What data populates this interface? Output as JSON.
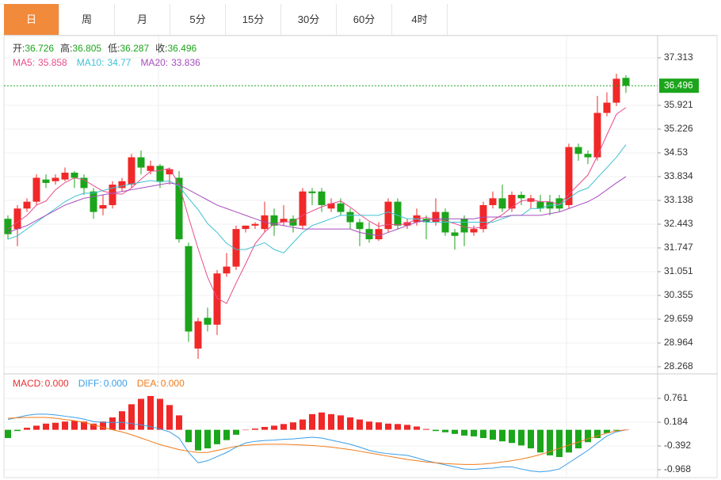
{
  "tabs": [
    "日",
    "周",
    "月",
    "5分",
    "15分",
    "30分",
    "60分",
    "4时"
  ],
  "active_tab": 0,
  "chart_data": [
    {
      "type": "candlestick",
      "up_color": "#f02828",
      "down_color": "#1ba51b",
      "info_labels": {
        "open": "开:",
        "high": "高:",
        "low": "低:",
        "close": "收:"
      },
      "ylim": [
        28.106,
        37.962
      ],
      "yticks": [
        37.313,
        35.921,
        35.226,
        34.53,
        33.834,
        33.138,
        32.443,
        31.747,
        31.051,
        30.355,
        29.659,
        28.964,
        28.268
      ],
      "open": [
        32.6,
        32.3,
        32.9,
        33.1,
        33.75,
        33.7,
        33.75,
        33.95,
        33.8,
        33.4,
        32.9,
        33.0,
        33.5,
        33.6,
        34.4,
        34.0,
        34.15,
        33.9,
        33.8,
        31.8,
        28.8,
        29.7,
        29.5,
        31.0,
        31.2,
        32.3,
        32.4,
        32.3,
        32.7,
        32.5,
        32.6,
        32.4,
        33.4,
        33.4,
        32.9,
        33.05,
        32.8,
        32.5,
        32.3,
        32.0,
        32.3,
        33.1,
        32.4,
        32.5,
        32.6,
        32.5,
        32.8,
        32.2,
        32.6,
        32.2,
        32.3,
        33.0,
        33.2,
        32.9,
        33.3,
        33.1,
        33.1,
        33.1,
        33.2,
        33.0,
        34.7,
        34.5,
        34.4,
        35.7,
        36.0,
        36.726
      ],
      "high": [
        32.7,
        33.0,
        33.2,
        33.9,
        33.9,
        33.9,
        34.1,
        34.0,
        33.9,
        33.5,
        33.3,
        33.7,
        33.8,
        34.5,
        34.6,
        34.3,
        34.2,
        34.1,
        34.0,
        31.9,
        29.7,
        30.0,
        31.1,
        31.6,
        32.4,
        32.4,
        32.5,
        33.1,
        32.9,
        33.0,
        32.7,
        33.5,
        33.5,
        33.5,
        33.2,
        33.2,
        32.9,
        32.6,
        32.5,
        32.5,
        33.2,
        33.2,
        32.6,
        32.9,
        32.7,
        33.2,
        32.9,
        32.3,
        32.7,
        32.4,
        33.1,
        33.4,
        33.6,
        33.4,
        33.4,
        33.3,
        33.3,
        33.3,
        33.3,
        34.8,
        34.8,
        34.6,
        36.2,
        36.3,
        36.85,
        36.805
      ],
      "low": [
        32.0,
        31.8,
        32.8,
        33.0,
        33.5,
        33.6,
        33.7,
        33.5,
        33.3,
        32.6,
        32.7,
        32.9,
        33.4,
        33.5,
        33.9,
        33.9,
        33.5,
        33.6,
        31.9,
        29.0,
        28.5,
        29.3,
        29.2,
        30.9,
        31.1,
        32.2,
        32.3,
        32.2,
        32.1,
        32.4,
        32.2,
        32.3,
        33.0,
        32.8,
        32.8,
        32.7,
        32.3,
        31.8,
        31.9,
        31.95,
        32.2,
        32.3,
        32.3,
        32.4,
        32.0,
        32.4,
        32.1,
        31.7,
        31.8,
        32.1,
        32.2,
        32.9,
        32.8,
        32.8,
        33.0,
        32.9,
        32.8,
        32.7,
        32.8,
        32.9,
        34.3,
        34.2,
        34.3,
        35.6,
        35.9,
        36.287
      ],
      "close": [
        32.15,
        32.9,
        33.1,
        33.8,
        33.65,
        33.8,
        33.95,
        33.8,
        33.5,
        32.8,
        33.0,
        33.6,
        33.7,
        34.4,
        34.1,
        34.15,
        33.7,
        34.05,
        32.0,
        29.3,
        29.6,
        29.5,
        31.0,
        31.2,
        32.3,
        32.4,
        32.45,
        32.7,
        32.4,
        32.6,
        32.4,
        33.4,
        33.35,
        33.0,
        33.05,
        32.8,
        32.5,
        32.3,
        32.0,
        32.3,
        33.1,
        32.4,
        32.5,
        32.7,
        32.5,
        32.8,
        32.2,
        32.1,
        32.2,
        32.3,
        33.0,
        33.2,
        32.9,
        33.3,
        33.2,
        33.2,
        32.9,
        32.9,
        32.9,
        34.7,
        34.5,
        34.4,
        35.7,
        36.0,
        36.7,
        36.496
      ],
      "series": [
        {
          "name": "MA5:",
          "color": "#e84b8a",
          "values": [
            32.3,
            32.5,
            32.7,
            33.0,
            33.12,
            33.45,
            33.66,
            33.8,
            33.74,
            33.57,
            33.41,
            33.34,
            33.32,
            33.5,
            33.76,
            33.99,
            34.01,
            34.08,
            33.6,
            32.64,
            31.73,
            30.89,
            30.28,
            30.12,
            30.72,
            31.28,
            31.87,
            32.21,
            32.45,
            32.51,
            32.51,
            32.7,
            32.83,
            32.95,
            33.04,
            33.12,
            32.94,
            32.73,
            32.53,
            32.38,
            32.44,
            32.42,
            32.46,
            32.6,
            32.64,
            32.58,
            32.54,
            32.46,
            32.36,
            32.32,
            32.36,
            32.56,
            32.72,
            32.94,
            33.12,
            33.16,
            33.1,
            33.1,
            33.02,
            33.32,
            33.6,
            33.88,
            34.44,
            35.06,
            35.66,
            35.858
          ]
        },
        {
          "name": "MA10:",
          "color": "#3fc1d3",
          "values": [
            32.0,
            32.1,
            32.3,
            32.5,
            32.7,
            32.9,
            33.1,
            33.25,
            33.35,
            33.35,
            33.43,
            33.5,
            33.56,
            33.62,
            33.67,
            33.72,
            33.68,
            33.71,
            33.55,
            33.2,
            32.87,
            32.46,
            32.2,
            31.88,
            31.7,
            31.7,
            31.8,
            31.9,
            31.7,
            31.6,
            31.9,
            32.2,
            32.4,
            32.5,
            32.6,
            32.7,
            32.7,
            32.7,
            32.7,
            32.7,
            32.8,
            32.7,
            32.6,
            32.6,
            32.5,
            32.5,
            32.5,
            32.5,
            32.5,
            32.5,
            32.5,
            32.5,
            32.6,
            32.7,
            32.7,
            32.9,
            32.9,
            33.0,
            33.0,
            33.2,
            33.4,
            33.5,
            33.8,
            34.1,
            34.4,
            34.77
          ]
        },
        {
          "name": "MA20:",
          "color": "#a64cbd",
          "values": [
            32.2,
            32.3,
            32.4,
            32.55,
            32.7,
            32.85,
            33.0,
            33.1,
            33.2,
            33.25,
            33.3,
            33.35,
            33.4,
            33.45,
            33.5,
            33.55,
            33.6,
            33.65,
            33.6,
            33.45,
            33.3,
            33.15,
            33.0,
            32.9,
            32.8,
            32.7,
            32.6,
            32.5,
            32.45,
            32.4,
            32.35,
            32.3,
            32.3,
            32.3,
            32.3,
            32.3,
            32.3,
            32.2,
            32.15,
            32.1,
            32.2,
            32.3,
            32.4,
            32.5,
            32.55,
            32.6,
            32.6,
            32.6,
            32.6,
            32.6,
            32.65,
            32.65,
            32.65,
            32.7,
            32.7,
            32.7,
            32.7,
            32.75,
            32.8,
            32.9,
            33.0,
            33.1,
            33.25,
            33.45,
            33.65,
            33.836
          ]
        }
      ]
    },
    {
      "type": "macd",
      "ylim": [
        -1.16,
        1.299
      ],
      "yticks": [
        0.761,
        0.184,
        -0.392,
        -0.968
      ],
      "up_color": "#f02828",
      "down_color": "#1ba51b",
      "legend": [
        {
          "name": "MACD:",
          "label": "0.000",
          "color": "#e83030"
        },
        {
          "name": "DIFF:",
          "label": "0.000",
          "color": "#3a9ee8"
        },
        {
          "name": "DEA:",
          "label": "0.000",
          "color": "#f07b1a"
        }
      ],
      "histogram": [
        -0.2,
        -0.03,
        0.05,
        0.1,
        0.15,
        0.17,
        0.2,
        0.22,
        0.2,
        0.15,
        0.2,
        0.3,
        0.45,
        0.62,
        0.75,
        0.82,
        0.75,
        0.6,
        0.35,
        -0.3,
        -0.5,
        -0.45,
        -0.35,
        -0.25,
        -0.12,
        0.0,
        0.03,
        0.07,
        0.1,
        0.14,
        0.18,
        0.25,
        0.38,
        0.42,
        0.38,
        0.35,
        0.3,
        0.25,
        0.2,
        0.18,
        0.15,
        0.14,
        0.12,
        0.08,
        0.02,
        -0.03,
        -0.06,
        -0.1,
        -0.14,
        -0.16,
        -0.2,
        -0.24,
        -0.28,
        -0.32,
        -0.38,
        -0.45,
        -0.55,
        -0.62,
        -0.66,
        -0.55,
        -0.45,
        -0.3,
        -0.2,
        -0.08,
        -0.02,
        0.0
      ],
      "series": [
        {
          "name": "DIFF",
          "color": "#3a9ee8",
          "values": [
            0.25,
            0.3,
            0.35,
            0.38,
            0.38,
            0.36,
            0.33,
            0.3,
            0.26,
            0.2,
            0.18,
            0.18,
            0.18,
            0.15,
            0.12,
            0.08,
            0.02,
            -0.05,
            -0.2,
            -0.55,
            -0.8,
            -0.75,
            -0.65,
            -0.55,
            -0.42,
            -0.32,
            -0.28,
            -0.26,
            -0.25,
            -0.23,
            -0.22,
            -0.2,
            -0.18,
            -0.2,
            -0.25,
            -0.3,
            -0.35,
            -0.42,
            -0.5,
            -0.55,
            -0.58,
            -0.6,
            -0.62,
            -0.68,
            -0.75,
            -0.8,
            -0.85,
            -0.9,
            -0.95,
            -0.96,
            -0.94,
            -0.93,
            -0.9,
            -0.9,
            -0.95,
            -1.0,
            -1.02,
            -1.0,
            -0.95,
            -0.8,
            -0.65,
            -0.5,
            -0.32,
            -0.15,
            -0.05,
            0.0
          ]
        },
        {
          "name": "DEA",
          "color": "#f07b1a",
          "values": [
            0.28,
            0.29,
            0.3,
            0.3,
            0.3,
            0.28,
            0.25,
            0.22,
            0.18,
            0.12,
            0.06,
            0.0,
            -0.05,
            -0.12,
            -0.2,
            -0.28,
            -0.36,
            -0.42,
            -0.48,
            -0.52,
            -0.55,
            -0.55,
            -0.5,
            -0.45,
            -0.4,
            -0.38,
            -0.36,
            -0.35,
            -0.35,
            -0.35,
            -0.36,
            -0.37,
            -0.38,
            -0.4,
            -0.42,
            -0.45,
            -0.48,
            -0.52,
            -0.56,
            -0.6,
            -0.64,
            -0.68,
            -0.72,
            -0.75,
            -0.78,
            -0.8,
            -0.82,
            -0.83,
            -0.84,
            -0.84,
            -0.83,
            -0.81,
            -0.78,
            -0.75,
            -0.71,
            -0.66,
            -0.6,
            -0.53,
            -0.45,
            -0.37,
            -0.3,
            -0.22,
            -0.15,
            -0.08,
            -0.03,
            0.0
          ]
        }
      ]
    }
  ]
}
